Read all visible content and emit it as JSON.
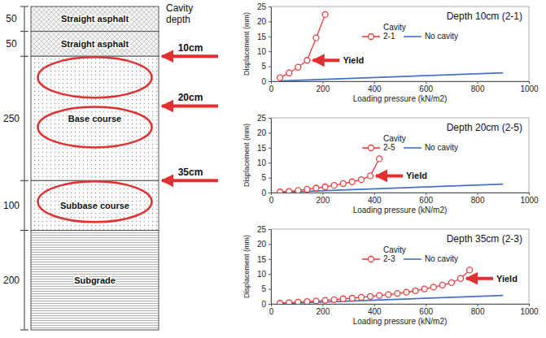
{
  "diagram": {
    "header": "Cavity depth",
    "layers": [
      {
        "name": "Straight asphalt",
        "thickness": 50
      },
      {
        "name": "Straight asphalt",
        "thickness": 50
      },
      {
        "name": "Base course",
        "thickness": 250
      },
      {
        "name": "Subbase course",
        "thickness": 100
      },
      {
        "name": "Subgrade",
        "thickness": 200
      }
    ],
    "cavities": [
      {
        "value": 10,
        "label": "10cm"
      },
      {
        "value": 20,
        "label": "20cm"
      },
      {
        "value": 35,
        "label": "35cm"
      }
    ]
  },
  "chart_data": [
    {
      "type": "line",
      "title": "Depth 10cm (2-1)",
      "x_label": "Loading pressure (kN/m2)",
      "y_label": "Displacement (mm)",
      "legend_title": "Cavity",
      "legend": "top",
      "xlim": [
        0,
        1000
      ],
      "xticks": [
        0,
        200,
        400,
        600,
        800,
        1000
      ],
      "ylim": [
        0,
        25
      ],
      "yticks": [
        0,
        5,
        10,
        15,
        20,
        25
      ],
      "grid": false,
      "series": [
        {
          "name": "2-1",
          "color": "#e83e3e",
          "marker": "circle",
          "line_style": "solid",
          "x": [
            35,
            70,
            105,
            140,
            175,
            210
          ],
          "values": [
            1.2,
            2.8,
            4.7,
            7,
            14.5,
            22.3
          ]
        },
        {
          "name": "No cavity",
          "color": "#4472c4",
          "marker": "none",
          "line_style": "solid",
          "x": [
            35,
            900
          ],
          "values": [
            0.1,
            2.8
          ]
        }
      ],
      "annotations": [
        {
          "text": "Yield",
          "x": 140,
          "y": 7
        }
      ]
    },
    {
      "type": "line",
      "title": "Depth 20cm (2-5)",
      "x_label": "Loading pressure (kN/m2)",
      "y_label": "Displacement (mm)",
      "legend_title": "Cavity",
      "legend": "top",
      "xlim": [
        0,
        1000
      ],
      "xticks": [
        0,
        200,
        400,
        600,
        800,
        1000
      ],
      "ylim": [
        0,
        25
      ],
      "yticks": [
        0,
        5,
        10,
        15,
        20,
        25
      ],
      "grid": false,
      "series": [
        {
          "name": "2-5",
          "color": "#e83e3e",
          "marker": "circle",
          "line_style": "solid",
          "x": [
            35,
            70,
            105,
            140,
            175,
            210,
            245,
            280,
            315,
            350,
            385,
            420
          ],
          "values": [
            0.2,
            0.4,
            0.7,
            1.1,
            1.5,
            1.9,
            2.4,
            3.0,
            3.6,
            4.3,
            5.6,
            11.3
          ]
        },
        {
          "name": "No cavity",
          "color": "#4472c4",
          "marker": "none",
          "line_style": "solid",
          "x": [
            35,
            900
          ],
          "values": [
            0.1,
            2.8
          ]
        }
      ],
      "annotations": [
        {
          "text": "Yield",
          "x": 385,
          "y": 5.6
        }
      ]
    },
    {
      "type": "line",
      "title": "Depth 35cm (2-3)",
      "x_label": "Loading pressure (kN/m2)",
      "y_label": "Displacement (mm)",
      "legend_title": "Cavity",
      "legend": "top",
      "xlim": [
        0,
        1000
      ],
      "xticks": [
        0,
        200,
        400,
        600,
        800,
        1000
      ],
      "ylim": [
        0,
        25
      ],
      "yticks": [
        0,
        5,
        10,
        15,
        20,
        25
      ],
      "grid": false,
      "series": [
        {
          "name": "2-3",
          "color": "#e83e3e",
          "marker": "circle",
          "line_style": "solid",
          "x": [
            35,
            70,
            105,
            140,
            175,
            210,
            245,
            280,
            315,
            350,
            385,
            420,
            455,
            490,
            525,
            560,
            595,
            630,
            665,
            700,
            735,
            770
          ],
          "values": [
            0.2,
            0.4,
            0.6,
            0.8,
            1.0,
            1.2,
            1.4,
            1.7,
            1.9,
            2.2,
            2.5,
            2.8,
            3.1,
            3.5,
            3.9,
            4.4,
            5.0,
            5.6,
            6.3,
            7.1,
            8.5,
            11.3
          ]
        },
        {
          "name": "No cavity",
          "color": "#4472c4",
          "marker": "none",
          "line_style": "solid",
          "x": [
            35,
            900
          ],
          "values": [
            0.1,
            2.8
          ]
        }
      ],
      "annotations": [
        {
          "text": "Yield",
          "x": 735,
          "y": 8.5
        }
      ]
    }
  ]
}
